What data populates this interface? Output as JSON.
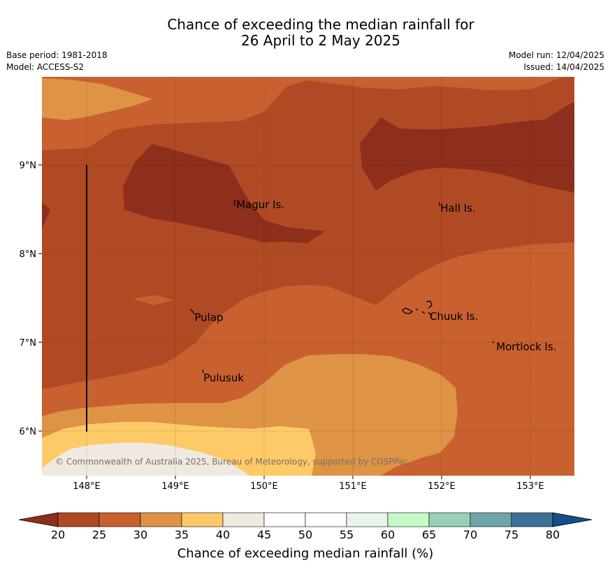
{
  "title": {
    "line1": "Chance of exceeding the median rainfall for",
    "line2": "26 April to 2 May 2025"
  },
  "meta": {
    "base_period": "Base period: 1981-2018",
    "model": "Model: ACCESS-S2",
    "model_run": "Model run: 12/04/2025",
    "issued": "Issued: 14/04/2025"
  },
  "map": {
    "copyright": "© Commonwealth of Australia 2025, Bureau of Meteorology, supported by COSPPac",
    "x_ticks": [
      "148°E",
      "149°E",
      "150°E",
      "151°E",
      "152°E",
      "153°E"
    ],
    "y_ticks": [
      "9°N",
      "8°N",
      "7°N",
      "6°N"
    ],
    "places": [
      {
        "name": "Magur Is.",
        "lon": 149.67,
        "lat": 8.55
      },
      {
        "name": "Hall Is.",
        "lon": 151.97,
        "lat": 8.51
      },
      {
        "name": "Pulap",
        "lon": 149.2,
        "lat": 7.28
      },
      {
        "name": "Chuuk Is.",
        "lon": 151.85,
        "lat": 7.29
      },
      {
        "name": "Mortlock Is.",
        "lon": 152.6,
        "lat": 6.95
      },
      {
        "name": "Pulusuk",
        "lon": 149.3,
        "lat": 6.6
      }
    ]
  },
  "colorbar": {
    "label": "Chance of exceeding median rainfall (%)",
    "ticks": [
      "20",
      "25",
      "30",
      "35",
      "40",
      "45",
      "50",
      "55",
      "60",
      "65",
      "70",
      "75",
      "80"
    ],
    "colors": [
      "#8e2e1c",
      "#b04a24",
      "#c8612f",
      "#de9345",
      "#fdca67",
      "#efe9e2",
      "#ffffff",
      "#ffffff",
      "#eaf5ea",
      "#c6fbc8",
      "#98cfb7",
      "#6fa4a8",
      "#3e7196",
      "#144d8a"
    ]
  }
}
